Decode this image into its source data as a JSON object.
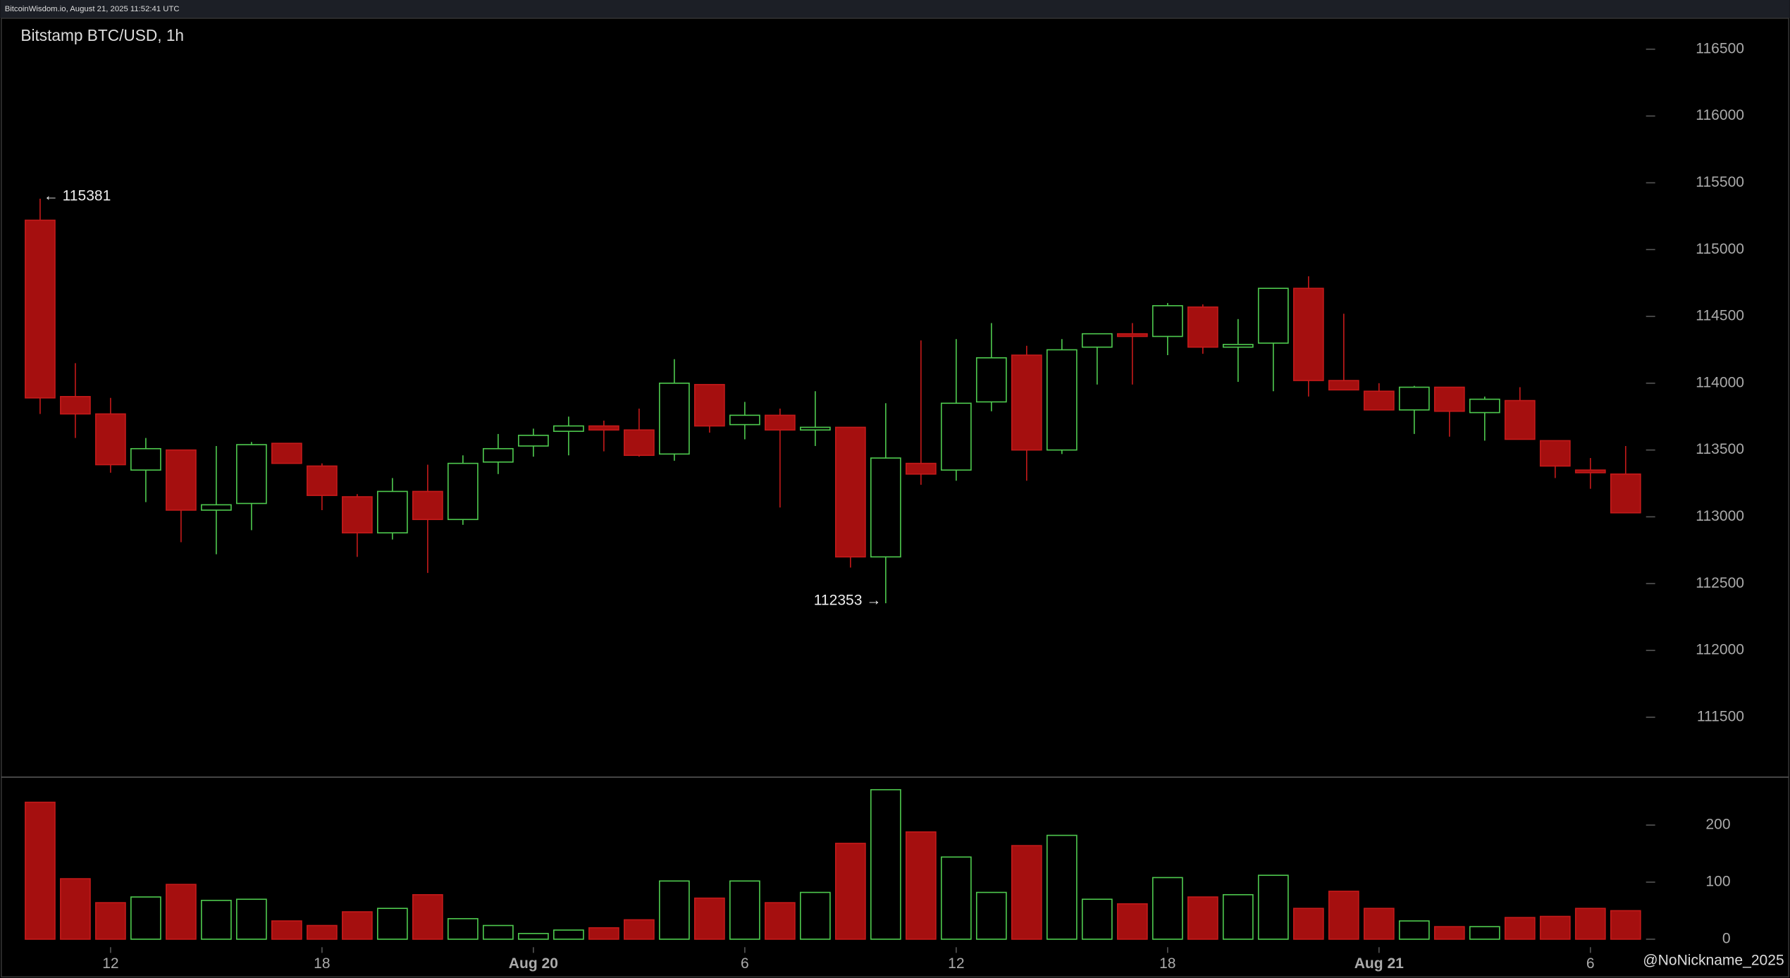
{
  "chart_data": {
    "type": "candlestick",
    "header": "BitcoinWisdom.io, August 21, 2025 11:52:41 UTC",
    "title": "Bitstamp BTC/USD, 1h",
    "watermark": "@NoNickname_2025",
    "categories": [
      null,
      null,
      "12",
      null,
      null,
      null,
      null,
      null,
      "18",
      null,
      null,
      null,
      null,
      null,
      "Aug 20",
      null,
      null,
      null,
      null,
      null,
      "6",
      null,
      null,
      null,
      null,
      null,
      "12",
      null,
      null,
      null,
      null,
      null,
      "18",
      null,
      null,
      null,
      null,
      null,
      "Aug 21",
      null,
      null,
      null,
      null,
      null,
      "6",
      null
    ],
    "open": [
      115220,
      113900,
      113770,
      113350,
      113500,
      113050,
      113100,
      113550,
      113380,
      113150,
      112880,
      113190,
      112980,
      113410,
      113530,
      113640,
      113680,
      113650,
      113470,
      113990,
      113690,
      113760,
      113650,
      113670,
      112700,
      113400,
      113350,
      113860,
      114210,
      113500,
      114270,
      114370,
      114350,
      114570,
      114270,
      114300,
      114710,
      114020,
      113940,
      113800,
      113970,
      113780,
      113870,
      113570,
      113350,
      113320
    ],
    "high": [
      115381,
      114150,
      113890,
      113590,
      113500,
      113530,
      113560,
      113550,
      113400,
      113170,
      113290,
      113390,
      113460,
      113620,
      113660,
      113750,
      113720,
      113810,
      114180,
      113990,
      113860,
      113810,
      113940,
      113670,
      113850,
      114320,
      114330,
      114450,
      114280,
      114330,
      114370,
      114450,
      114600,
      114590,
      114480,
      114710,
      114800,
      114520,
      114000,
      113980,
      113970,
      113900,
      113970,
      113570,
      113440,
      113530
    ],
    "low": [
      113770,
      113590,
      113330,
      113110,
      112810,
      112720,
      112900,
      113400,
      113050,
      112700,
      112830,
      112580,
      112940,
      113320,
      113450,
      113460,
      113490,
      113450,
      113420,
      113630,
      113580,
      113070,
      113530,
      112620,
      112353,
      113240,
      113270,
      113790,
      113270,
      113470,
      113990,
      113990,
      114210,
      114220,
      114010,
      113940,
      113900,
      113950,
      113800,
      113620,
      113600,
      113570,
      113580,
      113290,
      113210,
      113030
    ],
    "close": [
      113890,
      113770,
      113390,
      113510,
      113050,
      113090,
      113540,
      113400,
      113160,
      112880,
      113190,
      112980,
      113400,
      113510,
      113610,
      113680,
      113650,
      113460,
      114000,
      113680,
      113760,
      113650,
      113670,
      112700,
      113440,
      113320,
      113850,
      114190,
      113500,
      114250,
      114370,
      114350,
      114580,
      114270,
      114290,
      114710,
      114020,
      113950,
      113800,
      113970,
      113790,
      113880,
      113580,
      113380,
      113330,
      113030
    ],
    "volume": [
      240,
      106,
      64,
      74,
      96,
      68,
      70,
      32,
      24,
      48,
      54,
      78,
      36,
      24,
      10,
      16,
      20,
      34,
      102,
      72,
      102,
      64,
      82,
      168,
      262,
      188,
      144,
      82,
      164,
      182,
      70,
      62,
      108,
      74,
      78,
      112,
      54,
      84,
      54,
      32,
      22,
      22,
      38,
      40,
      54,
      50
    ],
    "ylim": [
      111060,
      116740
    ],
    "yticks": [
      111500,
      112000,
      112500,
      113000,
      113500,
      114000,
      114500,
      115000,
      115500,
      116000,
      116500
    ],
    "volume_ylim": [
      -14,
      282
    ],
    "volume_yticks": [
      0,
      100,
      200
    ],
    "up_color": "#4ec94e",
    "down_color": "#a50f0f",
    "annotations": [
      {
        "label": "← 115381",
        "value": 115381
      },
      {
        "label": "112353 →",
        "value": 112353
      }
    ]
  }
}
